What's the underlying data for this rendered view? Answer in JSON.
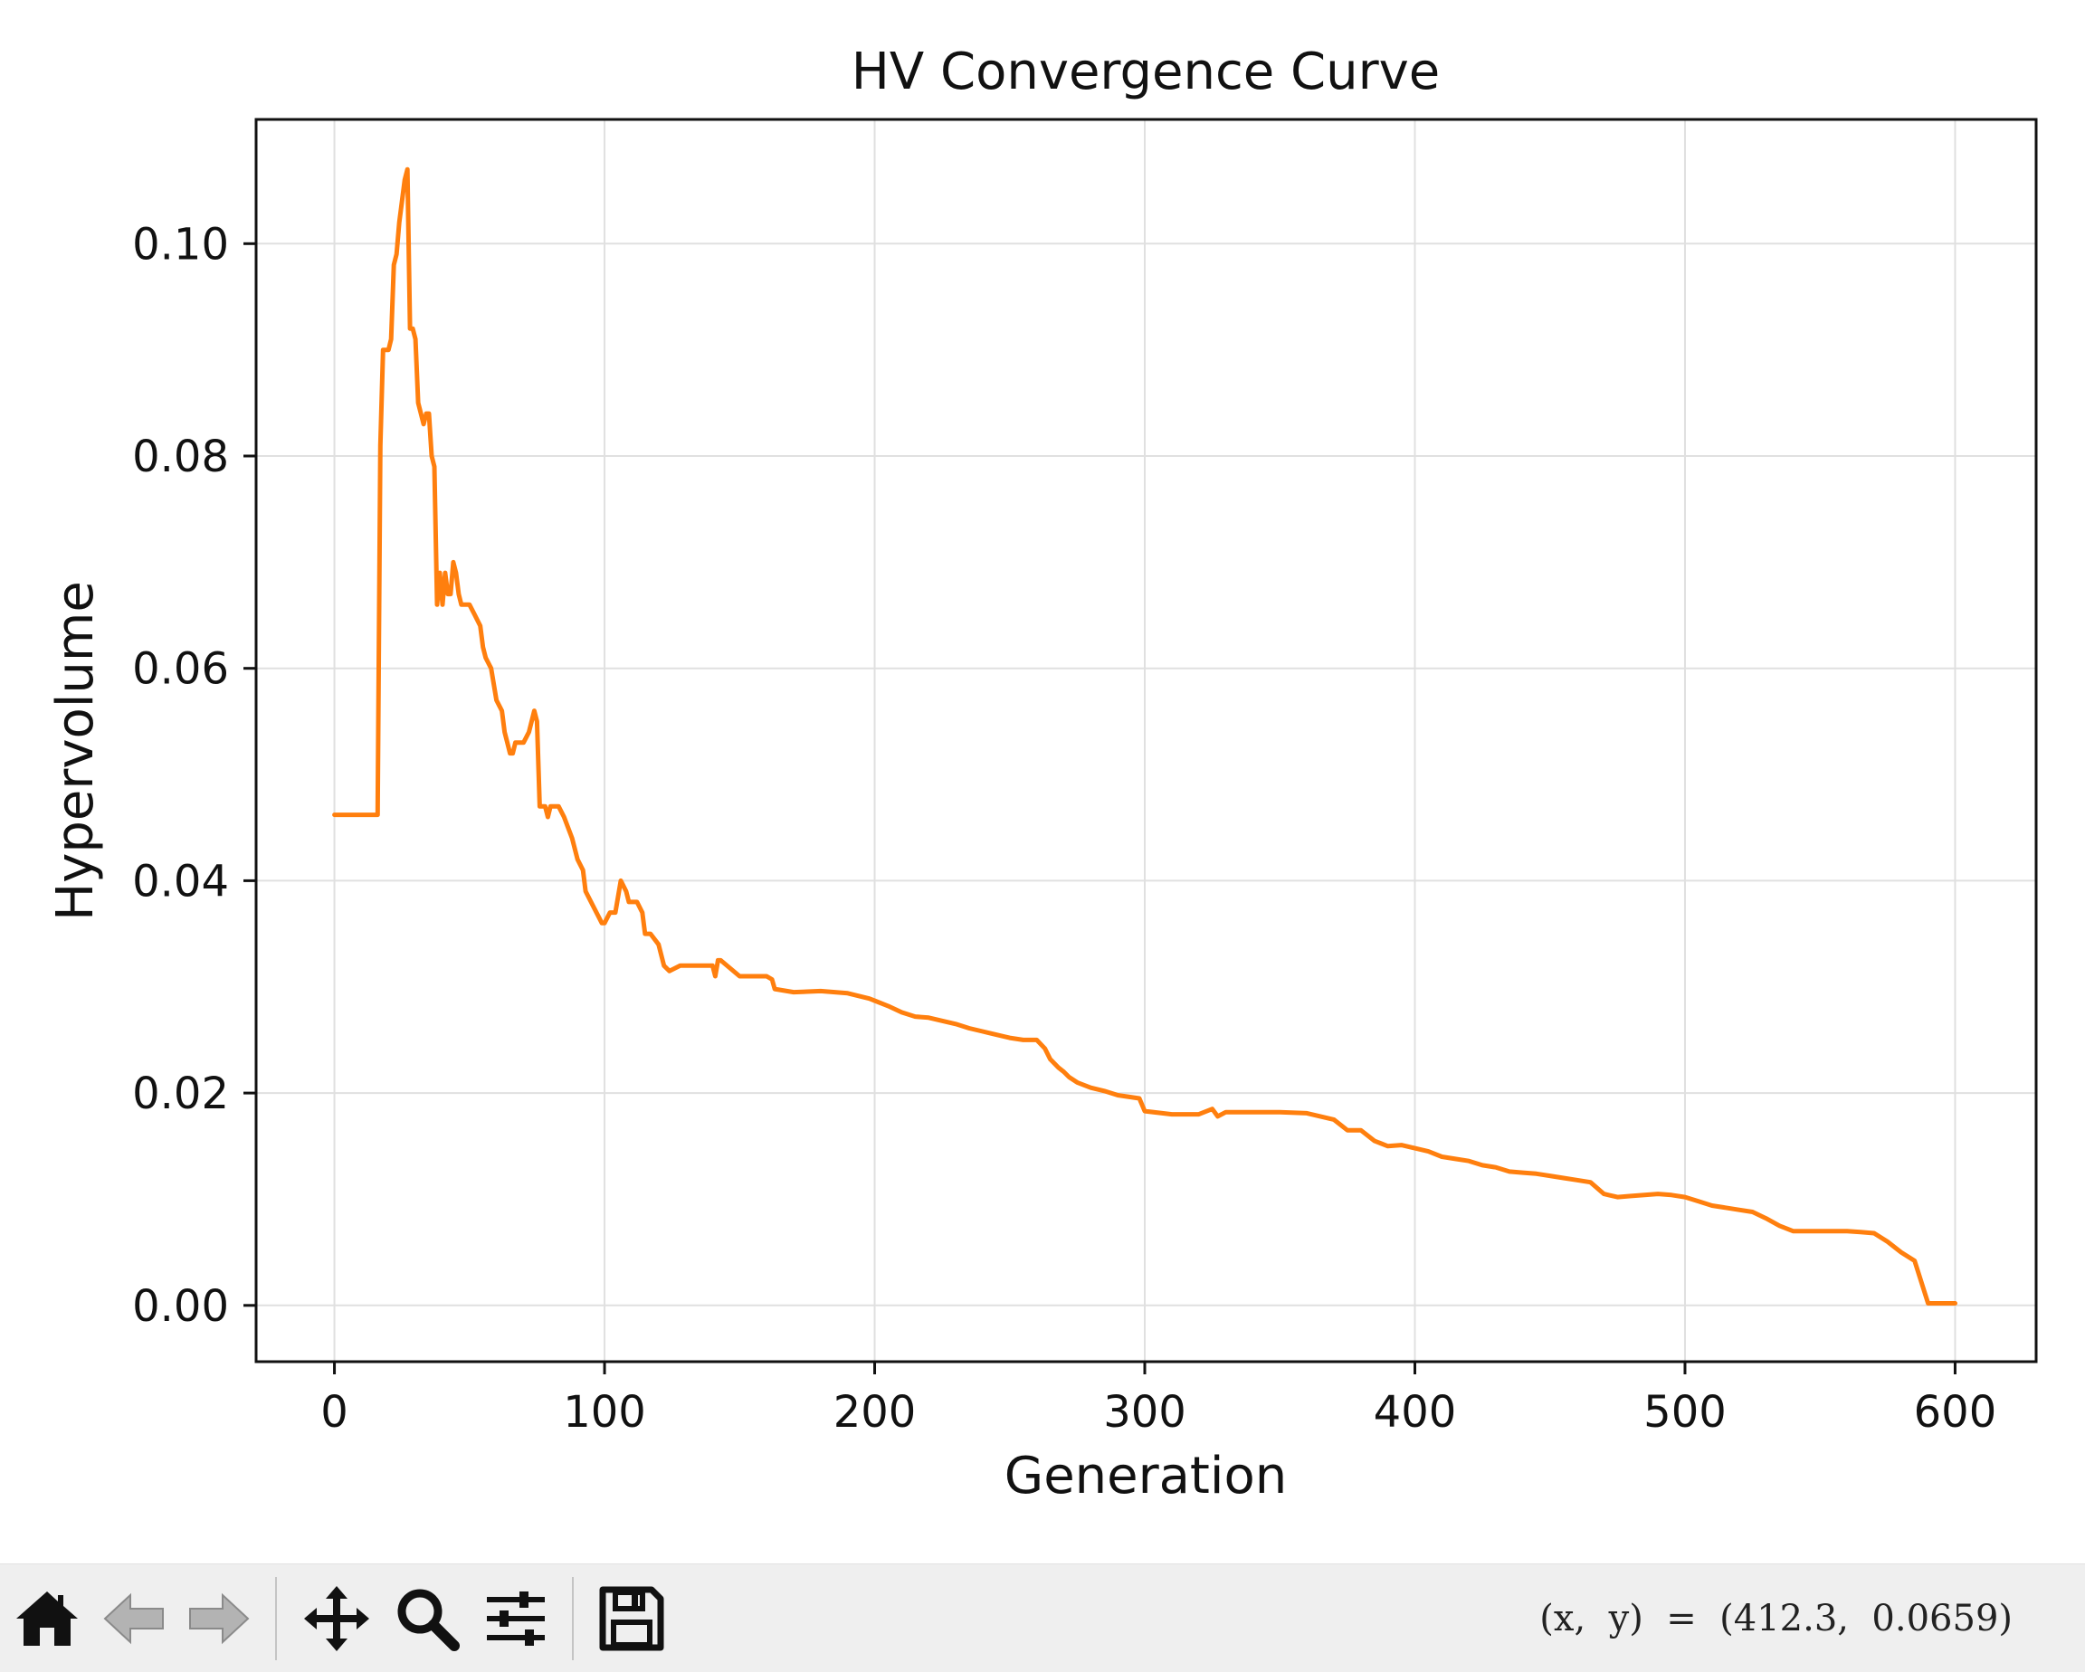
{
  "chart_data": {
    "type": "line",
    "title": "HV Convergence Curve",
    "xlabel": "Generation",
    "ylabel": "Hypervolume",
    "xlim": [
      -29,
      630
    ],
    "ylim": [
      -0.0053,
      0.1117
    ],
    "x_ticks": [
      0,
      100,
      200,
      300,
      400,
      500,
      600
    ],
    "x_tick_labels": [
      "0",
      "100",
      "200",
      "300",
      "400",
      "500",
      "600"
    ],
    "y_ticks": [
      0.0,
      0.02,
      0.04,
      0.06,
      0.08,
      0.1
    ],
    "y_tick_labels": [
      "0.00",
      "0.02",
      "0.04",
      "0.06",
      "0.08",
      "0.10"
    ],
    "grid": true,
    "line_color": "#ff7f0e",
    "series": [
      {
        "x": [
          0,
          16,
          17,
          18,
          20,
          21,
          22,
          23,
          24,
          25,
          26,
          27,
          28,
          29,
          30,
          31,
          33,
          34,
          35,
          36,
          37,
          38,
          39,
          40,
          41,
          42,
          43,
          44,
          45,
          46,
          47,
          48,
          50,
          52,
          54,
          55,
          56,
          58,
          60,
          62,
          63,
          64,
          65,
          66,
          67,
          68,
          70,
          72,
          74,
          75,
          76,
          77,
          78,
          79,
          80,
          81,
          83,
          85,
          88,
          90,
          92,
          93,
          95,
          97,
          99,
          100,
          102,
          104,
          106,
          108,
          109,
          110,
          112,
          114,
          115,
          117,
          120,
          122,
          124,
          128,
          132,
          140,
          141,
          142,
          143,
          150,
          152,
          160,
          162,
          163,
          170,
          180,
          190,
          198,
          200,
          205,
          210,
          215,
          220,
          225,
          230,
          235,
          240,
          245,
          250,
          255,
          260,
          263,
          265,
          268,
          270,
          272,
          275,
          280,
          285,
          290,
          298,
          300,
          310,
          320,
          325,
          327,
          330,
          335,
          340,
          350,
          360,
          365,
          370,
          375,
          380,
          385,
          390,
          395,
          400,
          405,
          410,
          415,
          420,
          425,
          430,
          435,
          440,
          445,
          450,
          455,
          460,
          465,
          470,
          475,
          480,
          485,
          490,
          495,
          500,
          505,
          510,
          515,
          520,
          525,
          530,
          535,
          540,
          545,
          550,
          555,
          560,
          565,
          570,
          575,
          580,
          585,
          590,
          595,
          600
        ],
        "y": [
          0.0462,
          0.0462,
          0.081,
          0.09,
          0.09,
          0.091,
          0.098,
          0.099,
          0.102,
          0.104,
          0.106,
          0.107,
          0.092,
          0.092,
          0.091,
          0.085,
          0.083,
          0.084,
          0.084,
          0.08,
          0.079,
          0.066,
          0.069,
          0.066,
          0.069,
          0.067,
          0.067,
          0.07,
          0.069,
          0.067,
          0.066,
          0.066,
          0.066,
          0.065,
          0.064,
          0.062,
          0.061,
          0.06,
          0.057,
          0.056,
          0.054,
          0.053,
          0.052,
          0.052,
          0.053,
          0.053,
          0.053,
          0.054,
          0.056,
          0.055,
          0.047,
          0.047,
          0.047,
          0.046,
          0.047,
          0.047,
          0.047,
          0.046,
          0.044,
          0.042,
          0.041,
          0.039,
          0.038,
          0.037,
          0.036,
          0.036,
          0.037,
          0.037,
          0.04,
          0.039,
          0.038,
          0.038,
          0.038,
          0.037,
          0.035,
          0.035,
          0.034,
          0.032,
          0.0315,
          0.032,
          0.032,
          0.032,
          0.031,
          0.0325,
          0.0325,
          0.031,
          0.031,
          0.031,
          0.0307,
          0.0298,
          0.0295,
          0.0296,
          0.0294,
          0.0289,
          0.0287,
          0.0282,
          0.0276,
          0.0272,
          0.0271,
          0.0268,
          0.0265,
          0.0261,
          0.0258,
          0.0255,
          0.0252,
          0.025,
          0.025,
          0.0242,
          0.0232,
          0.0224,
          0.022,
          0.0215,
          0.021,
          0.0205,
          0.0202,
          0.0198,
          0.0195,
          0.0183,
          0.018,
          0.018,
          0.0185,
          0.0178,
          0.0182,
          0.0182,
          0.0182,
          0.0182,
          0.0181,
          0.0178,
          0.0175,
          0.0165,
          0.0165,
          0.0155,
          0.015,
          0.0151,
          0.0148,
          0.0145,
          0.014,
          0.0138,
          0.0136,
          0.0132,
          0.013,
          0.0126,
          0.0125,
          0.0124,
          0.0122,
          0.012,
          0.0118,
          0.0116,
          0.0105,
          0.0102,
          0.0103,
          0.0104,
          0.0105,
          0.0104,
          0.0102,
          0.0098,
          0.0094,
          0.0092,
          0.009,
          0.0088,
          0.0082,
          0.0075,
          0.007,
          0.007,
          0.007,
          0.007,
          0.007,
          0.0069,
          0.0068,
          0.006,
          0.005,
          0.0042,
          0.0002,
          0.0002,
          0.0002
        ]
      }
    ]
  },
  "toolbar": {
    "buttons": [
      {
        "name": "home-button",
        "icon": "home-icon"
      },
      {
        "name": "back-button",
        "icon": "back-arrow-icon"
      },
      {
        "name": "forward-button",
        "icon": "forward-arrow-icon"
      },
      {
        "name": "pan-button",
        "icon": "move-icon"
      },
      {
        "name": "zoom-button",
        "icon": "magnifier-icon"
      },
      {
        "name": "subplots-button",
        "icon": "sliders-icon"
      },
      {
        "name": "save-button",
        "icon": "floppy-disk-icon"
      }
    ],
    "coords_text": "(x,  y)  =  (412.3,  0.0659)"
  }
}
